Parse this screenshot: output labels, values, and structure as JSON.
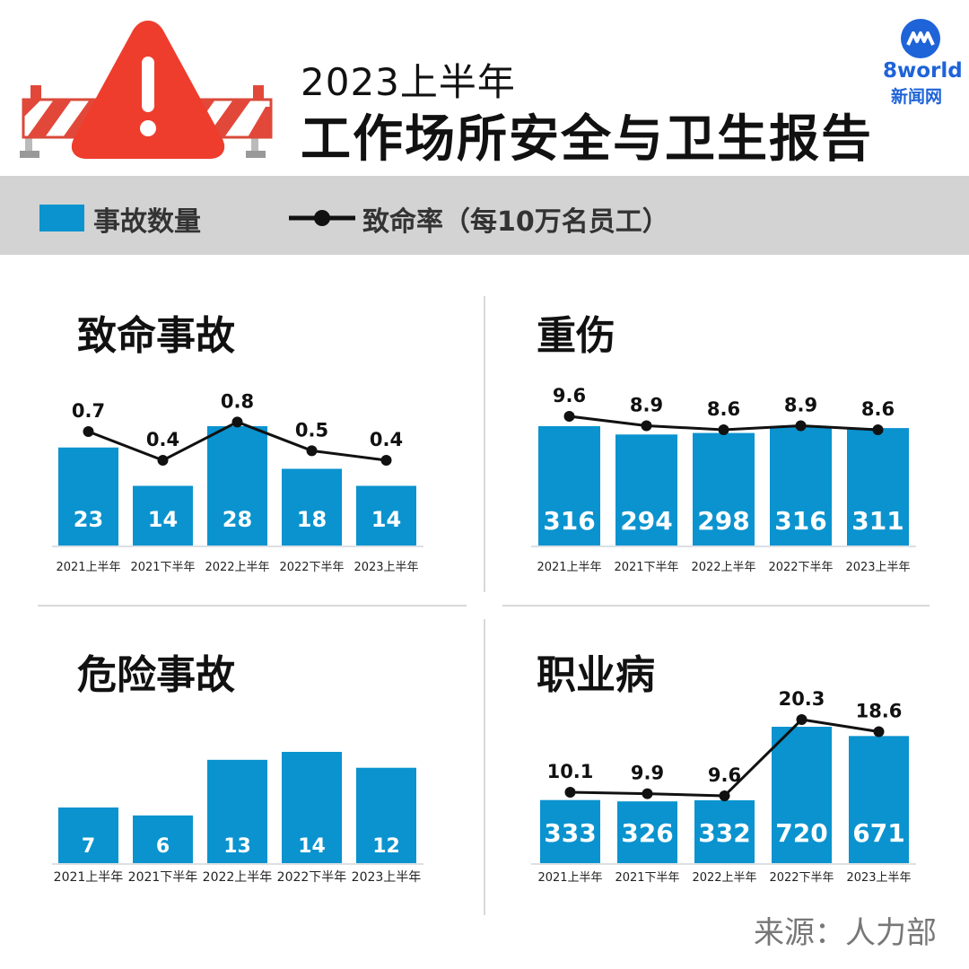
{
  "header": {
    "title_small": "2023上半年",
    "title_main": "工作场所安全与卫生报告",
    "logo_line1": "8world",
    "logo_line2": "新闻网"
  },
  "legend": {
    "bar_label": "事故数量",
    "line_label": "致命率（每10万名员工）"
  },
  "source": "来源：人力部",
  "colors": {
    "bar": "#0a93cf",
    "line": "#111111",
    "accent": "#e73a2a"
  },
  "chart_data": [
    {
      "type": "bar",
      "title": "致命事故",
      "categories": [
        "2021上半年",
        "2021下半年",
        "2022上半年",
        "2022下半年",
        "2023上半年"
      ],
      "series": [
        {
          "name": "事故数量",
          "type": "bar",
          "values": [
            23,
            14,
            28,
            18,
            14
          ]
        },
        {
          "name": "致命率（每10万名员工）",
          "type": "line",
          "values": [
            0.7,
            0.4,
            0.8,
            0.5,
            0.4
          ]
        }
      ]
    },
    {
      "type": "bar",
      "title": "重伤",
      "categories": [
        "2021上半年",
        "2021下半年",
        "2022上半年",
        "2022下半年",
        "2023上半年"
      ],
      "series": [
        {
          "name": "事故数量",
          "type": "bar",
          "values": [
            316,
            294,
            298,
            316,
            311
          ]
        },
        {
          "name": "致命率（每10万名员工）",
          "type": "line",
          "values": [
            9.6,
            8.9,
            8.6,
            8.9,
            8.6
          ]
        }
      ]
    },
    {
      "type": "bar",
      "title": "危险事故",
      "categories": [
        "2021上半年",
        "2021下半年",
        "2022上半年",
        "2022下半年",
        "2023上半年"
      ],
      "series": [
        {
          "name": "事故数量",
          "type": "bar",
          "values": [
            7,
            6,
            13,
            14,
            12
          ]
        }
      ]
    },
    {
      "type": "bar",
      "title": "职业病",
      "categories": [
        "2021上半年",
        "2021下半年",
        "2022上半年",
        "2022下半年",
        "2023上半年"
      ],
      "series": [
        {
          "name": "事故数量",
          "type": "bar",
          "values": [
            333,
            326,
            332,
            720,
            671
          ]
        },
        {
          "name": "致命率（每10万名员工）",
          "type": "line",
          "values": [
            10.1,
            9.9,
            9.6,
            20.3,
            18.6
          ]
        }
      ]
    }
  ]
}
